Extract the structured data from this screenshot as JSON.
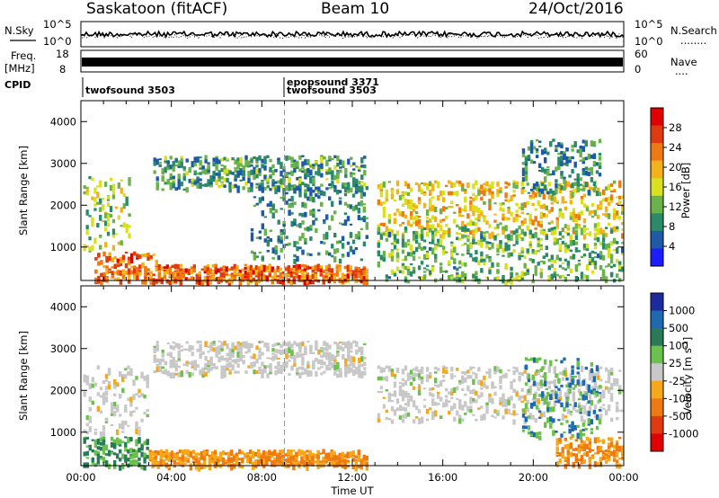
{
  "header": {
    "title": "Saskatoon (fitACF)",
    "beam": "Beam 10",
    "date": "24/Oct/2016"
  },
  "strips": {
    "nsky_label": "N.Sky",
    "nsky_ticks": [
      "10^5",
      "10^0"
    ],
    "nsky_ticks_right": [
      "10^5",
      "10^0"
    ],
    "nsearch_label": "N.Search",
    "nsearch_marker": "........",
    "freq_label": "Freq.",
    "freq_unit": "[MHz]",
    "freq_ticks": [
      "18",
      "8"
    ],
    "nave_ticks": [
      "60",
      "0"
    ],
    "nave_label": "Nave",
    "nave_marker": "....",
    "cpid_label": "CPID",
    "cpid_entries": [
      "twofsound 3503",
      "epopsound 3371",
      "twofsound 3503"
    ]
  },
  "chart_data": [
    {
      "type": "heatmap",
      "title": "",
      "xlabel": "Time UT",
      "ylabel": "Slant Range [km]",
      "xlim": [
        "00:00",
        "24:00"
      ],
      "x_ticks": [
        "00:00",
        "04:00",
        "08:00",
        "12:00",
        "16:00",
        "20:00",
        "00:00"
      ],
      "ylim": [
        200,
        4500
      ],
      "y_ticks": [
        1000,
        2000,
        3000,
        4000
      ],
      "colorbar": {
        "label": "Power [dB]",
        "ticks": [
          4,
          8,
          12,
          16,
          20,
          24,
          28
        ],
        "colors": [
          "#1c1cff",
          "#1d5aa8",
          "#2a8a6a",
          "#6ab24a",
          "#d8e020",
          "#f4b21a",
          "#f07a12",
          "#e03a10",
          "#e00000"
        ]
      },
      "bands": [
        {
          "t": [
            0.6,
            3.4
          ],
          "r": [
            200,
            900
          ],
          "level": 24
        },
        {
          "t": [
            3.4,
            12.7
          ],
          "r": [
            200,
            600
          ],
          "level": 24
        },
        {
          "t": [
            0.1,
            2.2
          ],
          "r": [
            1000,
            2700
          ],
          "level": 14
        },
        {
          "t": [
            3.2,
            12.6
          ],
          "r": [
            2400,
            3200
          ],
          "level": 10
        },
        {
          "t": [
            7.5,
            12.7
          ],
          "r": [
            700,
            2500
          ],
          "level": 9
        },
        {
          "t": [
            13.1,
            24.0
          ],
          "r": [
            1300,
            2600
          ],
          "level": 18
        },
        {
          "t": [
            13.1,
            24.0
          ],
          "r": [
            200,
            1500
          ],
          "level": 12
        },
        {
          "t": [
            19.5,
            23.0
          ],
          "r": [
            2300,
            3600
          ],
          "level": 9
        }
      ],
      "cpid_change": "09:00"
    },
    {
      "type": "heatmap",
      "title": "",
      "xlabel": "Time UT",
      "ylabel": "Slant Range [km]",
      "xlim": [
        "00:00",
        "24:00"
      ],
      "x_ticks": [
        "00:00",
        "04:00",
        "08:00",
        "12:00",
        "16:00",
        "20:00",
        "00:00"
      ],
      "ylim": [
        200,
        4500
      ],
      "y_ticks": [
        1000,
        2000,
        3000,
        4000
      ],
      "colorbar": {
        "label": "Velocity [m s^-1]",
        "ticks": [
          1000,
          500,
          100,
          25,
          -25,
          -100,
          -500,
          -1000
        ],
        "colors": [
          "#1c2aa0",
          "#1d6ab0",
          "#2a7a5a",
          "#6ac24a",
          "#c8c8c8",
          "#f4a81a",
          "#f07a12",
          "#e03a10",
          "#e00000"
        ]
      },
      "bands": [
        {
          "t": [
            0.1,
            3.0
          ],
          "r": [
            200,
            900
          ],
          "level": 100
        },
        {
          "t": [
            3.0,
            12.7
          ],
          "r": [
            200,
            600
          ],
          "level": -100
        },
        {
          "t": [
            0.1,
            3.0
          ],
          "r": [
            1000,
            2600
          ],
          "level": 0
        },
        {
          "t": [
            3.2,
            12.6
          ],
          "r": [
            2400,
            3200
          ],
          "level": 0
        },
        {
          "t": [
            13.1,
            24.0
          ],
          "r": [
            1300,
            2600
          ],
          "level": 0
        },
        {
          "t": [
            19.5,
            23.0
          ],
          "r": [
            900,
            2800
          ],
          "level": 500
        },
        {
          "t": [
            21.0,
            24.0
          ],
          "r": [
            200,
            900
          ],
          "level": -100
        }
      ],
      "cpid_change": "09:00"
    }
  ]
}
